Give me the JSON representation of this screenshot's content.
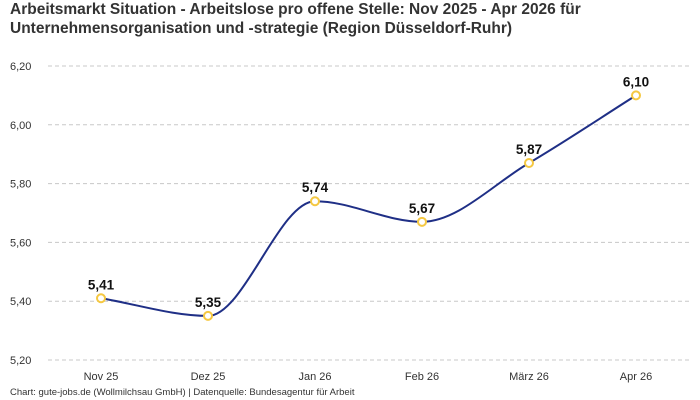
{
  "chart_data": {
    "type": "line",
    "title": "Arbeitsmarkt Situation - Arbeitslose pro offene Stelle: Nov 2025 - Apr 2026 für Unternehmensorganisation und -strategie (Region Düsseldorf-Ruhr)",
    "categories": [
      "Nov 25",
      "Dez 25",
      "Jan 26",
      "Feb 26",
      "März 26",
      "Apr 26"
    ],
    "series": [
      {
        "values": [
          5.41,
          5.35,
          5.74,
          5.67,
          5.87,
          6.1
        ],
        "labels": [
          "5,41",
          "5,35",
          "5,74",
          "5,67",
          "5,87",
          "6,10"
        ]
      }
    ],
    "y_ticks": [
      5.2,
      5.4,
      5.6,
      5.8,
      6.0,
      6.2
    ],
    "y_tick_labels": [
      "5,20",
      "5,40",
      "5,60",
      "5,80",
      "6,00",
      "6,20"
    ],
    "ylim": [
      5.2,
      6.2
    ],
    "xlabel": "",
    "ylabel": "",
    "grid": true,
    "line_color": "#1f2f86",
    "marker_color": "#f5c842",
    "source": "Chart: gute-jobs.de (Wollmilchsau GmbH) | Datenquelle: Bundesagentur für Arbeit"
  }
}
